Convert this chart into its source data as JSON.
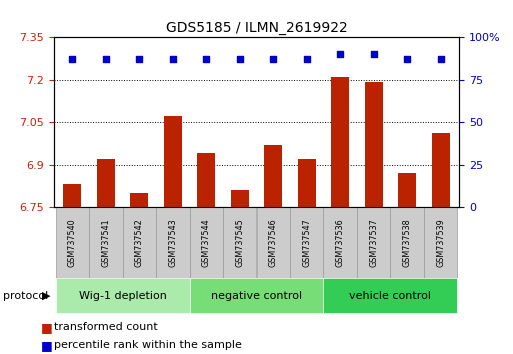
{
  "title": "GDS5185 / ILMN_2619922",
  "samples": [
    "GSM737540",
    "GSM737541",
    "GSM737542",
    "GSM737543",
    "GSM737544",
    "GSM737545",
    "GSM737546",
    "GSM737547",
    "GSM737536",
    "GSM737537",
    "GSM737538",
    "GSM737539"
  ],
  "transformed_counts": [
    6.83,
    6.92,
    6.8,
    7.07,
    6.94,
    6.81,
    6.97,
    6.92,
    7.21,
    7.19,
    6.87,
    7.01
  ],
  "percentile_ranks": [
    87,
    87,
    87,
    87,
    87,
    87,
    87,
    87,
    90,
    90,
    87,
    87
  ],
  "ylim_left": [
    6.75,
    7.35
  ],
  "ylim_right": [
    0,
    100
  ],
  "yticks_left": [
    6.75,
    6.9,
    7.05,
    7.2,
    7.35
  ],
  "yticks_right": [
    0,
    25,
    50,
    75,
    100
  ],
  "bar_color": "#bb2200",
  "dot_color": "#0000cc",
  "groups": [
    {
      "label": "Wig-1 depletion",
      "start": 0,
      "end": 3,
      "color": "#aaeaaa"
    },
    {
      "label": "negative control",
      "start": 4,
      "end": 7,
      "color": "#77dd77"
    },
    {
      "label": "vehicle control",
      "start": 8,
      "end": 11,
      "color": "#33cc55"
    }
  ],
  "legend_items": [
    {
      "label": "transformed count",
      "color": "#bb2200"
    },
    {
      "label": "percentile rank within the sample",
      "color": "#0000cc"
    }
  ],
  "xlabel_protocol": "protocol",
  "background_color": "#ffffff",
  "plot_bg": "#ffffff",
  "tick_color_left": "#cc2200",
  "tick_color_right": "#0000cc",
  "sample_box_color": "#cccccc",
  "sample_box_edge": "#999999"
}
